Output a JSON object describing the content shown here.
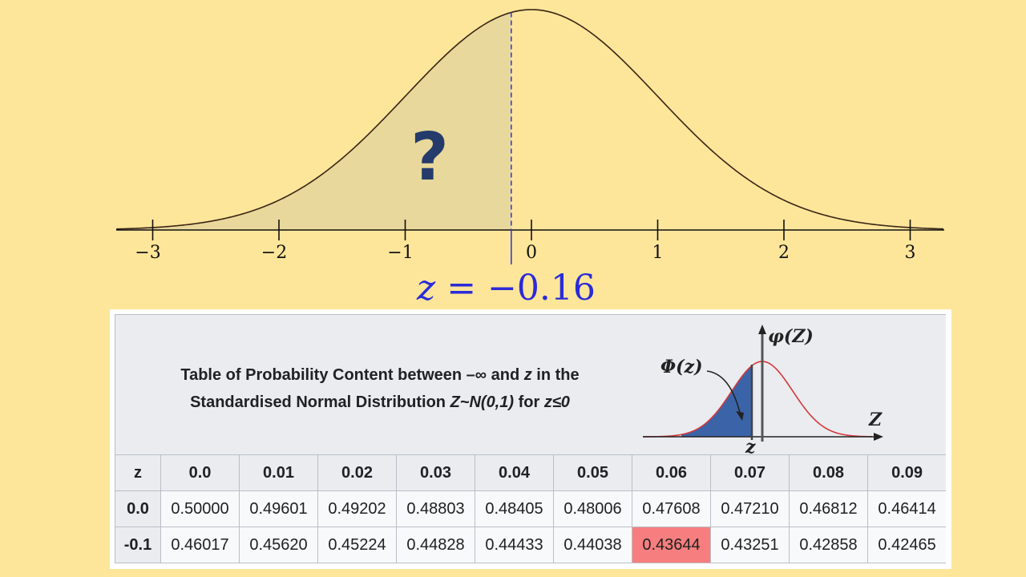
{
  "diagram": {
    "x_ticks": [
      "−3",
      "−2",
      "−1",
      "0",
      "1",
      "2",
      "3"
    ],
    "shaded_region_mark": "?",
    "z_label": {
      "var": "z",
      "relation": "=",
      "value": "−0.16"
    },
    "z_value": -0.16,
    "colors": {
      "background": "#fde69a",
      "shade": "#e8d89b",
      "curve": "#3a2414",
      "dashed_line": "#3a3ad8",
      "z_text": "#2b2bd8",
      "question_mark": "#243b6b",
      "highlight": "#f77e7e"
    }
  },
  "table": {
    "caption_line1_a": "Table of Probability Content between –∞ and ",
    "caption_line1_z": "z",
    "caption_line1_b": " in the",
    "caption_line2_a": "Standardised Normal Distribution ",
    "caption_line2_dist": "Z~N(0,1)",
    "caption_line2_b": " for ",
    "caption_line2_cond": "z≤0",
    "mini_figure": {
      "phi_label": "Φ(z)",
      "pdf_label": "φ(Z)",
      "axis_label": "Z",
      "z_label": "z"
    },
    "corner_header": "z",
    "columns": [
      "0.0",
      "0.01",
      "0.02",
      "0.03",
      "0.04",
      "0.05",
      "0.06",
      "0.07",
      "0.08",
      "0.09"
    ],
    "rows": [
      {
        "z": "0.0",
        "values": [
          "0.50000",
          "0.49601",
          "0.49202",
          "0.48803",
          "0.48405",
          "0.48006",
          "0.47608",
          "0.47210",
          "0.46812",
          "0.46414"
        ]
      },
      {
        "z": "-0.1",
        "values": [
          "0.46017",
          "0.45620",
          "0.45224",
          "0.44828",
          "0.44433",
          "0.44038",
          "0.43644",
          "0.43251",
          "0.42858",
          "0.42465"
        ]
      }
    ],
    "highlight": {
      "row": 1,
      "col": 6
    }
  }
}
